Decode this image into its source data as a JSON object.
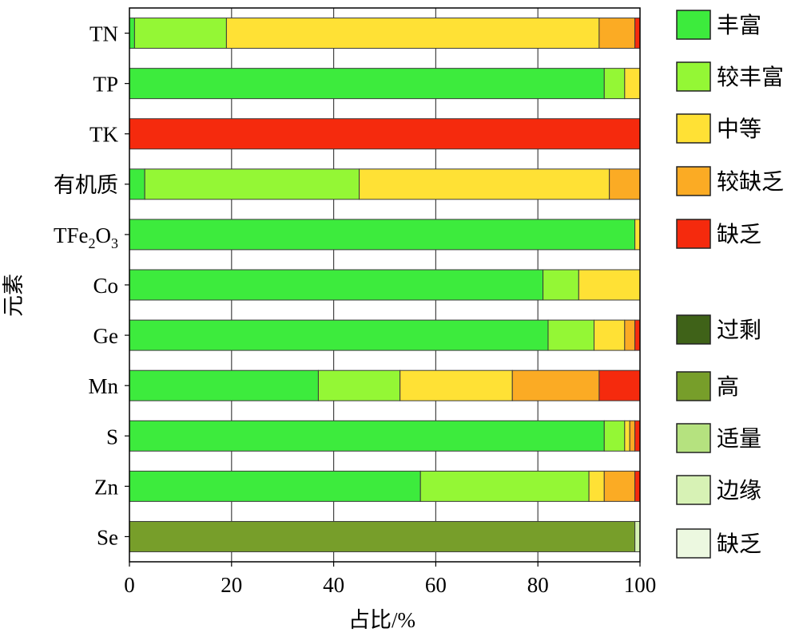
{
  "chart_data": {
    "type": "bar",
    "orientation": "horizontal",
    "stacked": true,
    "title": "",
    "xlabel": "占比/%",
    "ylabel": "元素",
    "xlim": [
      0,
      100
    ],
    "xticks": [
      0,
      20,
      40,
      60,
      80,
      100
    ],
    "grid": true,
    "legend_position": "right",
    "categories": [
      {
        "label": "TN"
      },
      {
        "label": "TP"
      },
      {
        "label": "TK"
      },
      {
        "label": "有机质"
      },
      {
        "label": "TFe2O3",
        "base": "TFe",
        "sub1": "2",
        "mid": "O",
        "sub2": "3"
      },
      {
        "label": "Co"
      },
      {
        "label": "Ge"
      },
      {
        "label": "Mn"
      },
      {
        "label": "S"
      },
      {
        "label": "Zn"
      },
      {
        "label": "Se"
      }
    ],
    "series": [
      {
        "name": "丰富",
        "color": "#3deb3d",
        "values": [
          1,
          93,
          0,
          3,
          99,
          81,
          82,
          37,
          93,
          57,
          0
        ]
      },
      {
        "name": "较丰富",
        "color": "#94f735",
        "values": [
          18,
          4,
          0,
          42,
          0,
          7,
          9,
          16,
          4,
          33,
          0
        ]
      },
      {
        "name": "中等",
        "color": "#ffe135",
        "values": [
          73,
          3,
          0,
          49,
          1,
          12,
          6,
          22,
          1,
          3,
          0
        ]
      },
      {
        "name": "较缺乏",
        "color": "#fbab24",
        "values": [
          7,
          0,
          0,
          6,
          0,
          0,
          2,
          17,
          1,
          6,
          0
        ]
      },
      {
        "name": "缺乏",
        "color": "#f52a0d",
        "values": [
          1,
          0,
          100,
          0,
          0,
          0,
          1,
          8,
          1,
          1,
          0
        ]
      },
      {
        "name": "过剩",
        "color": "#3f6218",
        "values": [
          0,
          0,
          0,
          0,
          0,
          0,
          0,
          0,
          0,
          0,
          0
        ]
      },
      {
        "name": "高",
        "color": "#779e2a",
        "values": [
          0,
          0,
          0,
          0,
          0,
          0,
          0,
          0,
          0,
          0,
          99
        ]
      },
      {
        "name": "适量",
        "color": "#b5e27f",
        "values": [
          0,
          0,
          0,
          0,
          0,
          0,
          0,
          0,
          0,
          0,
          0
        ]
      },
      {
        "name": "边缘",
        "color": "#d7f2b5",
        "values": [
          0,
          0,
          0,
          0,
          0,
          0,
          0,
          0,
          0,
          0,
          1
        ]
      },
      {
        "name": "缺乏",
        "color": "#ecf8e0",
        "values": [
          0,
          0,
          0,
          0,
          0,
          0,
          0,
          0,
          0,
          0,
          0
        ]
      }
    ]
  }
}
